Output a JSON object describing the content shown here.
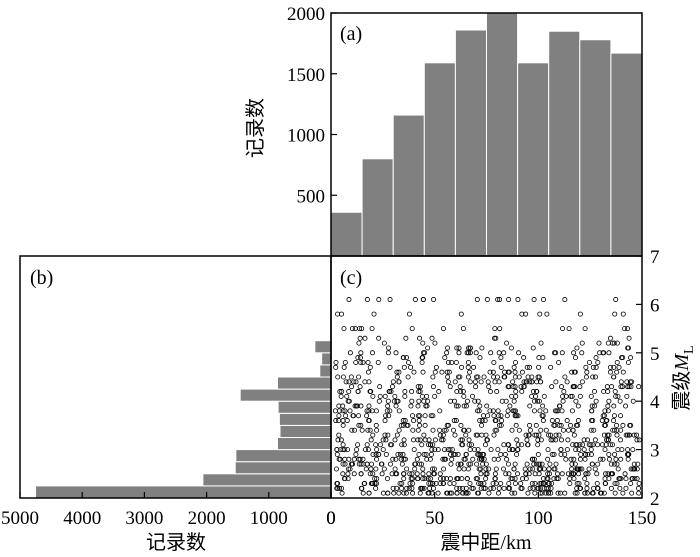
{
  "colors": {
    "bar": "#808080",
    "bar_edge": "#ffffff",
    "axis": "#000000",
    "marker": "#000000"
  },
  "chart_data": [
    {
      "panel": "a",
      "type": "bar",
      "panel_label": "(a)",
      "xlabel": "",
      "ylabel": "记录数",
      "x_range": [
        0,
        150
      ],
      "y_range": [
        0,
        2000
      ],
      "yticks": [
        500,
        1000,
        1500,
        2000
      ],
      "bin_edges": [
        0,
        15,
        30,
        45,
        60,
        75,
        90,
        105,
        120,
        135,
        150
      ],
      "values": [
        360,
        800,
        1160,
        1590,
        1860,
        2000,
        1590,
        1850,
        1780,
        1670
      ],
      "grid": false
    },
    {
      "panel": "b",
      "type": "bar",
      "orientation": "horizontal",
      "panel_label": "(b)",
      "xlabel": "记录数",
      "ylabel": "",
      "x_range": [
        5000,
        0
      ],
      "y_range": [
        2,
        7
      ],
      "xticks": [
        5000,
        4000,
        3000,
        2000,
        1000,
        0
      ],
      "bin_edges": [
        2.0,
        2.25,
        2.5,
        2.75,
        3.0,
        3.25,
        3.5,
        3.75,
        4.0,
        4.25,
        4.5,
        4.75,
        5.0,
        5.25,
        5.5,
        5.75,
        6.0,
        6.25
      ],
      "values": [
        4750,
        2060,
        1540,
        1530,
        860,
        820,
        830,
        850,
        1460,
        860,
        180,
        150,
        260,
        0,
        0,
        0,
        15
      ],
      "grid": false
    },
    {
      "panel": "c",
      "type": "scatter",
      "panel_label": "(c)",
      "xlabel": "震中距/km",
      "ylabel_main": "震级",
      "ylabel_var": "M",
      "ylabel_sub": "L",
      "x_range": [
        0,
        150
      ],
      "y_range": [
        2,
        7
      ],
      "xticks": [
        0,
        50,
        100,
        150
      ],
      "yticks": [
        2,
        3,
        4,
        5,
        6,
        7
      ],
      "marker": "open-circle",
      "magnitude_levels": [
        {
          "m": 2.1,
          "count": 60
        },
        {
          "m": 2.2,
          "count": 58
        },
        {
          "m": 2.3,
          "count": 56
        },
        {
          "m": 2.4,
          "count": 54
        },
        {
          "m": 2.5,
          "count": 52
        },
        {
          "m": 2.6,
          "count": 50
        },
        {
          "m": 2.7,
          "count": 48
        },
        {
          "m": 2.8,
          "count": 46
        },
        {
          "m": 2.9,
          "count": 44
        },
        {
          "m": 3.0,
          "count": 42
        },
        {
          "m": 3.1,
          "count": 40
        },
        {
          "m": 3.2,
          "count": 38
        },
        {
          "m": 3.3,
          "count": 36
        },
        {
          "m": 3.4,
          "count": 34
        },
        {
          "m": 3.5,
          "count": 32
        },
        {
          "m": 3.6,
          "count": 30
        },
        {
          "m": 3.7,
          "count": 30
        },
        {
          "m": 3.8,
          "count": 34
        },
        {
          "m": 3.9,
          "count": 30
        },
        {
          "m": 4.0,
          "count": 28
        },
        {
          "m": 4.1,
          "count": 26
        },
        {
          "m": 4.2,
          "count": 30
        },
        {
          "m": 4.3,
          "count": 32
        },
        {
          "m": 4.4,
          "count": 34
        },
        {
          "m": 4.5,
          "count": 30
        },
        {
          "m": 4.6,
          "count": 24
        },
        {
          "m": 4.7,
          "count": 22
        },
        {
          "m": 4.8,
          "count": 20
        },
        {
          "m": 4.9,
          "count": 18
        },
        {
          "m": 5.0,
          "count": 26
        },
        {
          "m": 5.1,
          "count": 14
        },
        {
          "m": 5.2,
          "count": 12
        },
        {
          "m": 5.3,
          "count": 10
        },
        {
          "m": 5.5,
          "count": 16
        },
        {
          "m": 5.8,
          "count": 12
        },
        {
          "m": 6.1,
          "count": 18
        }
      ]
    }
  ]
}
